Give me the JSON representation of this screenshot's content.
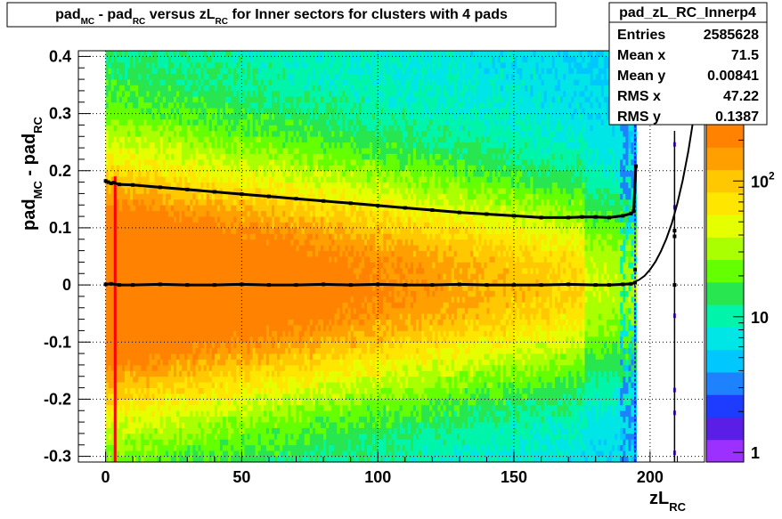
{
  "title": {
    "parts": [
      {
        "t": "pad",
        "sub": "MC"
      },
      {
        "t": " - pad",
        "sub": "RC"
      },
      {
        "t": " versus zL",
        "sub": "RC"
      },
      {
        "t": " for Inner sectors for clusters with 4 pads",
        "sub": ""
      }
    ]
  },
  "stats": {
    "name": "pad_zL_RC_Innerp4",
    "rows": [
      {
        "label": "Entries",
        "value": "2585628"
      },
      {
        "label": "Mean x",
        "value": "71.5"
      },
      {
        "label": "Mean y",
        "value": "0.00841"
      },
      {
        "label": "RMS x",
        "value": "47.22"
      },
      {
        "label": "RMS y",
        "value": "0.1387"
      }
    ]
  },
  "colorbar": {
    "scale": "log",
    "labels": [
      {
        "base": "1",
        "exp": "",
        "value": 1
      },
      {
        "base": "10",
        "exp": "",
        "value": 10
      },
      {
        "base": "10",
        "exp": "2",
        "value": 100
      }
    ]
  },
  "colors": {
    "palette": [
      "#9b30ff",
      "#5a1ee6",
      "#1e3cff",
      "#1e82ff",
      "#00c8ff",
      "#00e6e6",
      "#00f5aa",
      "#28e650",
      "#64ff00",
      "#aaff00",
      "#e6ff00",
      "#ffe600",
      "#ffc800",
      "#ffa000",
      "#ff8200"
    ],
    "marker": "#000000",
    "red_line": "#ff0000",
    "blue_edge": "#2020ff"
  },
  "chart_data": {
    "type": "heatmap",
    "xlabel": {
      "t": "zL",
      "sub": "RC"
    },
    "ylabel": {
      "t": "pad",
      "sub": "MC",
      "t2": " - pad",
      "sub2": "RC"
    },
    "xlim": [
      -10,
      220
    ],
    "ylim": [
      -0.31,
      0.41
    ],
    "x_ticks": [
      0,
      50,
      100,
      150,
      200
    ],
    "y_ticks": [
      -0.3,
      -0.2,
      -0.1,
      0,
      0.1,
      0.2,
      0.3,
      0.4
    ],
    "x_tick_labels": [
      "0",
      "50",
      "100",
      "150",
      "200"
    ],
    "y_tick_labels": [
      "-0.3",
      "-0.2",
      "-0.1",
      "0",
      "0.1",
      "0.2",
      "0.3",
      "0.4"
    ],
    "grid": true,
    "series": [
      {
        "kind": "profile-mean",
        "x": [
          0,
          2,
          5,
          10,
          20,
          30,
          40,
          50,
          60,
          70,
          80,
          90,
          100,
          110,
          120,
          130,
          140,
          150,
          160,
          170,
          180,
          185,
          190,
          193,
          194.5
        ],
        "y": [
          0.001,
          0.002,
          0.0,
          0.0,
          0.001,
          0.0,
          0.0,
          0.001,
          0.0,
          0.0,
          0.001,
          0.0,
          0.001,
          0.0,
          0.0,
          0.001,
          0.0,
          0.0,
          0.0,
          0.001,
          0.0,
          0.0,
          0.001,
          0.002,
          0.004
        ]
      },
      {
        "kind": "profile-rms",
        "x": [
          0,
          1,
          2,
          3,
          5,
          10,
          20,
          30,
          40,
          50,
          60,
          70,
          80,
          90,
          100,
          110,
          120,
          130,
          140,
          150,
          160,
          170,
          175,
          180,
          185,
          190,
          193,
          194,
          194.8
        ],
        "y": [
          0.182,
          0.18,
          0.178,
          0.179,
          0.176,
          0.175,
          0.171,
          0.167,
          0.163,
          0.159,
          0.155,
          0.151,
          0.147,
          0.143,
          0.139,
          0.135,
          0.131,
          0.127,
          0.124,
          0.121,
          0.118,
          0.118,
          0.119,
          0.119,
          0.118,
          0.121,
          0.125,
          0.129,
          0.208
        ]
      },
      {
        "kind": "fit-curve",
        "x": [
          194,
          196,
          198,
          200,
          202,
          204,
          206,
          208,
          210,
          212,
          214,
          216,
          218
        ],
        "y": [
          0.005,
          0.009,
          0.016,
          0.027,
          0.041,
          0.059,
          0.081,
          0.108,
          0.142,
          0.183,
          0.233,
          0.293,
          0.365
        ]
      }
    ],
    "extra_points": [
      {
        "x": 194.5,
        "y": 0.027
      },
      {
        "x": 209,
        "y": 0.0
      },
      {
        "x": 209,
        "y": 0.085
      },
      {
        "x": 209,
        "y": 0.095
      }
    ]
  }
}
